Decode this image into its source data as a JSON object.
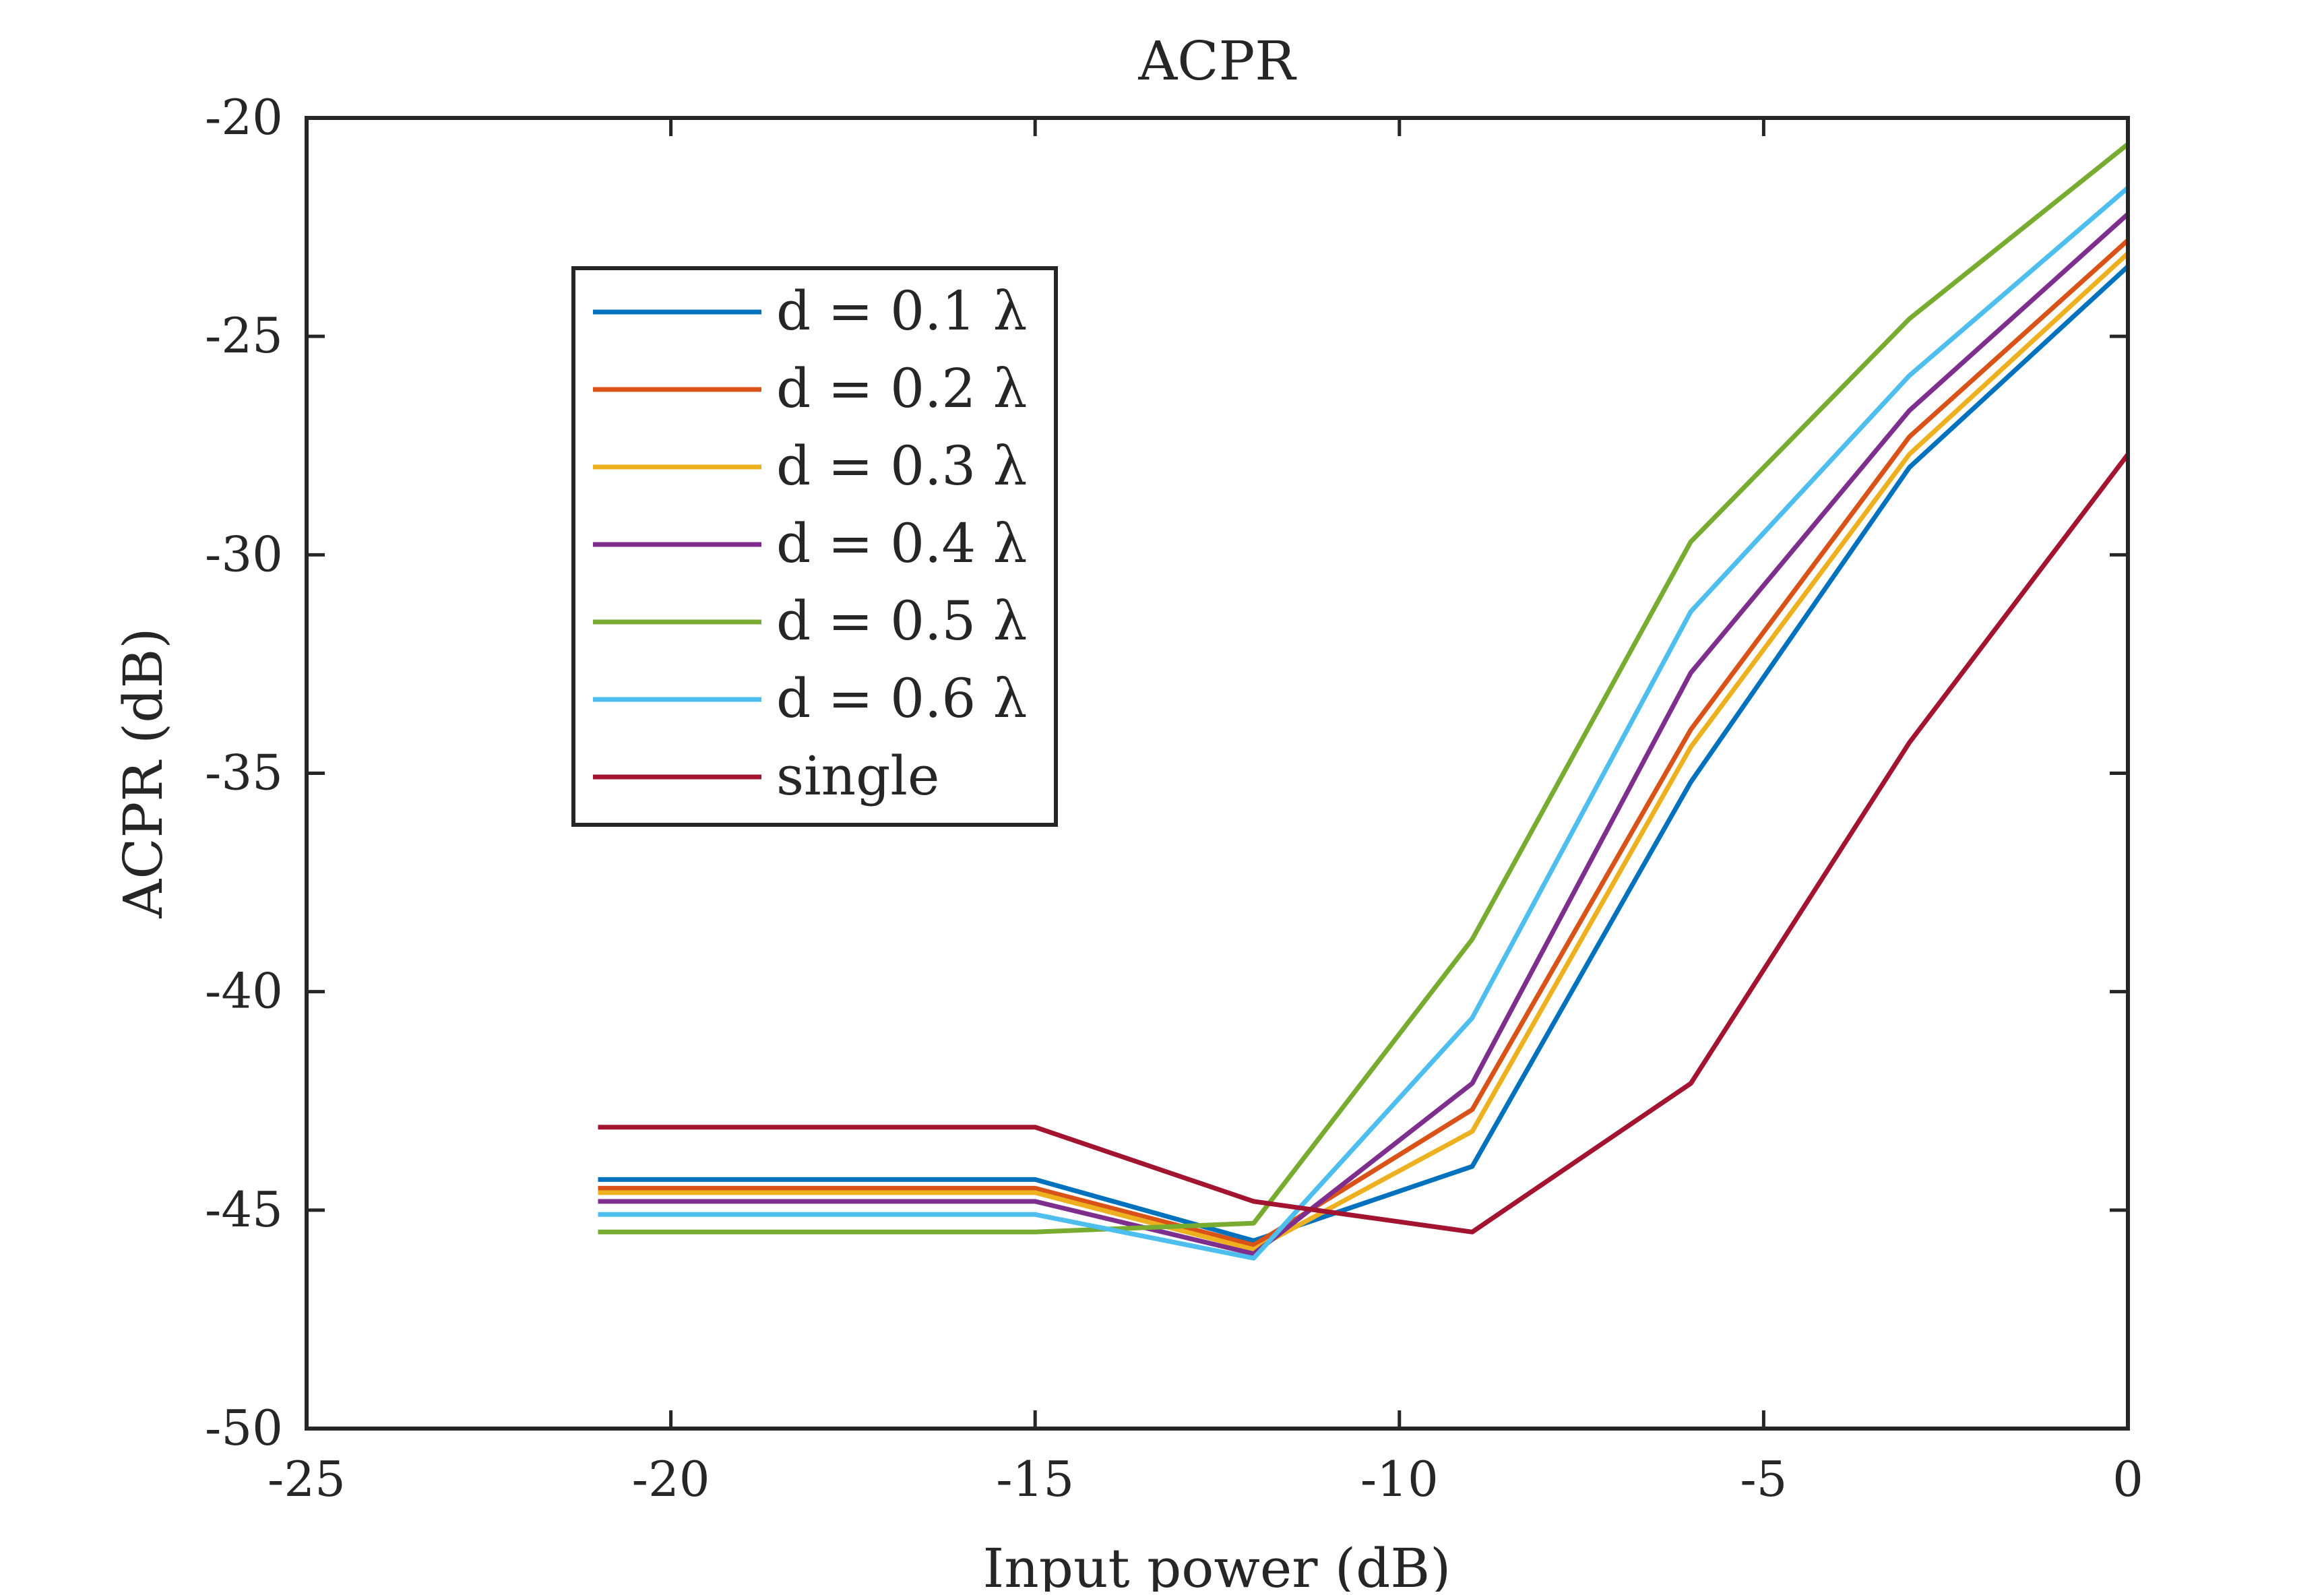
{
  "chart_data": {
    "type": "line",
    "title": "ACPR",
    "xlabel": "Input power (dB)",
    "ylabel": "ACPR (dB)",
    "xlim": [
      -25,
      0
    ],
    "ylim": [
      -50,
      -20
    ],
    "xticks": [
      -25,
      -20,
      -15,
      -10,
      -5,
      0
    ],
    "yticks": [
      -20,
      -25,
      -30,
      -35,
      -40,
      -45,
      -50
    ],
    "x": [
      -21,
      -15,
      -12,
      -9,
      -6,
      -3,
      0
    ],
    "grid": false,
    "legend_position": "upper-left",
    "series": [
      {
        "name": "d = 0.1 λ",
        "color": "#0072BD",
        "values": [
          -44.3,
          -44.3,
          -45.7,
          -44.0,
          -35.2,
          -28.0,
          -23.4
        ]
      },
      {
        "name": "d = 0.2 λ",
        "color": "#D95319",
        "values": [
          -44.5,
          -44.5,
          -45.8,
          -42.7,
          -34.0,
          -27.3,
          -22.8
        ]
      },
      {
        "name": "d = 0.3 λ",
        "color": "#EDB120",
        "values": [
          -44.6,
          -44.6,
          -45.9,
          -43.2,
          -34.4,
          -27.7,
          -23.1
        ]
      },
      {
        "name": "d = 0.4 λ",
        "color": "#7E2F8E",
        "values": [
          -44.8,
          -44.8,
          -46.0,
          -42.1,
          -32.7,
          -26.7,
          -22.2
        ]
      },
      {
        "name": "d = 0.5 λ",
        "color": "#77AC30",
        "values": [
          -45.5,
          -45.5,
          -45.3,
          -38.8,
          -29.7,
          -24.6,
          -20.6
        ]
      },
      {
        "name": "d = 0.6 λ",
        "color": "#4DBEEE",
        "values": [
          -45.1,
          -45.1,
          -46.1,
          -40.6,
          -31.3,
          -25.9,
          -21.6
        ]
      },
      {
        "name": "single",
        "color": "#A2142F",
        "values": [
          -43.1,
          -43.1,
          -44.8,
          -45.5,
          -42.1,
          -34.3,
          -27.7
        ]
      }
    ]
  }
}
